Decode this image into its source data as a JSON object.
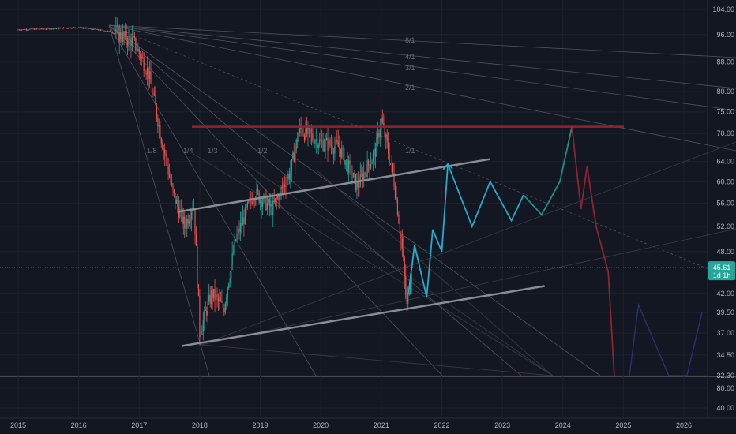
{
  "colors": {
    "background": "#131722",
    "grid": "#1e222d",
    "axis_text": "#b2b5be",
    "candle_up": "#26a69a",
    "candle_down": "#ef5350",
    "fan_lines": "#50535e",
    "trend_channel": "#8a8d96",
    "resistance": "#8f2430",
    "forecast_cyan": "#2aa9c9",
    "forecast_teal": "#1f8f86",
    "forecast_red": "#8f2430",
    "forecast_navy": "#2b2f6e",
    "price_tag": "#26a69a"
  },
  "chart_data": {
    "type": "candlestick",
    "x_ticks": [
      "2015",
      "2016",
      "2017",
      "2018",
      "2019",
      "2020",
      "2021",
      "2022",
      "2023",
      "2024",
      "2025",
      "2026"
    ],
    "y_ticks_main": [
      "104.00",
      "96.00",
      "88.00",
      "80.00",
      "75.00",
      "70.00",
      "64.00",
      "60.00",
      "56.00",
      "52.00",
      "48.00",
      "42.00",
      "39.50",
      "37.00",
      "34.50",
      "32.30"
    ],
    "y_ticks_sub": [
      "80.00",
      "40.00"
    ],
    "y_scale": "log",
    "ylim": [
      32.3,
      104.0
    ],
    "grid": true,
    "last_price": "45.61",
    "last_price_sublabel": "1d 1h",
    "fan_labels": [
      "8/1",
      "4/1",
      "3/1",
      "2/1",
      "1/1",
      "1/2",
      "1/3",
      "1/4",
      "1/8"
    ],
    "resistance_level": 71.5,
    "price_series": [
      {
        "x": "2015.0",
        "y": 97.5
      },
      {
        "x": "2015.5",
        "y": 97.8
      },
      {
        "x": "2016.0",
        "y": 98.2
      },
      {
        "x": "2016.5",
        "y": 97.0
      },
      {
        "x": "2016.9",
        "y": 94.0
      },
      {
        "x": "2017.15",
        "y": 85.0
      },
      {
        "x": "2017.35",
        "y": 70.0
      },
      {
        "x": "2017.55",
        "y": 58.0
      },
      {
        "x": "2017.75",
        "y": 52.0
      },
      {
        "x": "2017.9",
        "y": 56.0
      },
      {
        "x": "2018.0",
        "y": 37.0
      },
      {
        "x": "2018.2",
        "y": 42.0
      },
      {
        "x": "2018.4",
        "y": 40.0
      },
      {
        "x": "2018.6",
        "y": 50.0
      },
      {
        "x": "2018.9",
        "y": 58.0
      },
      {
        "x": "2019.2",
        "y": 55.0
      },
      {
        "x": "2019.5",
        "y": 62.0
      },
      {
        "x": "2019.65",
        "y": 71.0
      },
      {
        "x": "2020.0",
        "y": 68.0
      },
      {
        "x": "2020.3",
        "y": 67.0
      },
      {
        "x": "2020.6",
        "y": 59.0
      },
      {
        "x": "2020.9",
        "y": 66.0
      },
      {
        "x": "2021.0",
        "y": 73.0
      },
      {
        "x": "2021.2",
        "y": 61.0
      },
      {
        "x": "2021.35",
        "y": 48.0
      },
      {
        "x": "2021.42",
        "y": 40.0
      },
      {
        "x": "2021.5",
        "y": 45.6
      }
    ],
    "trend_channel": [
      {
        "name": "upper",
        "points": [
          {
            "x": "2017.65",
            "y": 54.5
          },
          {
            "x": "2022.8",
            "y": 64.5
          }
        ]
      },
      {
        "name": "lower",
        "points": [
          {
            "x": "2017.7",
            "y": 35.5
          },
          {
            "x": "2023.7",
            "y": 43.0
          }
        ]
      }
    ],
    "forecast_path": [
      {
        "x": "2021.45",
        "y": 42.0
      },
      {
        "x": "2021.55",
        "y": 49.0
      },
      {
        "x": "2021.75",
        "y": 41.5
      },
      {
        "x": "2021.85",
        "y": 51.5
      },
      {
        "x": "2022.0",
        "y": 48.0
      },
      {
        "x": "2022.1",
        "y": 63.5
      },
      {
        "x": "2022.5",
        "y": 52.0
      },
      {
        "x": "2022.8",
        "y": 60.0
      },
      {
        "x": "2023.15",
        "y": 53.0
      },
      {
        "x": "2023.35",
        "y": 57.5
      },
      {
        "x": "2023.65",
        "y": 54.0
      },
      {
        "x": "2023.95",
        "y": 60.0
      },
      {
        "x": "2024.15",
        "y": 71.5
      }
    ],
    "forecast_down_path": [
      {
        "x": "2024.15",
        "y": 71.5
      },
      {
        "x": "2024.3",
        "y": 55.0
      },
      {
        "x": "2024.4",
        "y": 63.0
      },
      {
        "x": "2024.55",
        "y": 52.0
      },
      {
        "x": "2024.75",
        "y": 45.0
      },
      {
        "x": "2024.85",
        "y": 32.3
      }
    ],
    "forecast_tail_path": [
      {
        "x": "2025.1",
        "y": 32.3
      },
      {
        "x": "2025.25",
        "y": 40.5
      },
      {
        "x": "2025.75",
        "y": 32.3
      },
      {
        "x": "2026.05",
        "y": 32.3
      },
      {
        "x": "2026.3",
        "y": 39.5
      }
    ]
  }
}
